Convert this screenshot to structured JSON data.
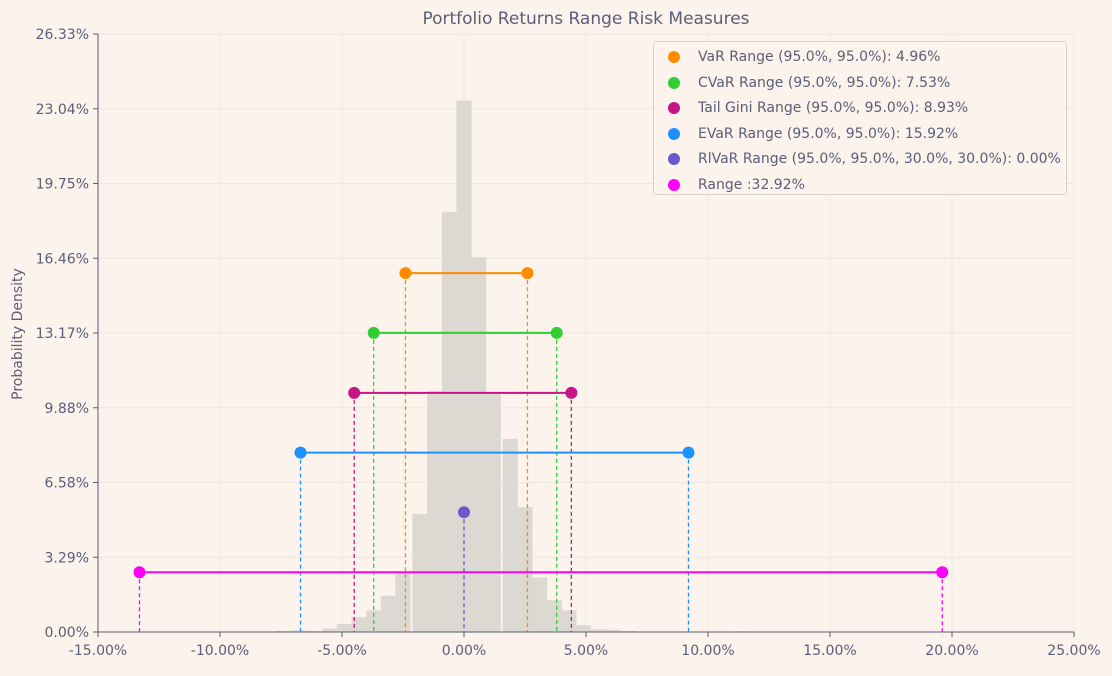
{
  "chart_data": {
    "type": "bar",
    "title": "Portfolio Returns Range Risk Measures",
    "xlabel": "",
    "ylabel": "Probability Density",
    "xlim": [
      -15,
      25
    ],
    "ylim": [
      0,
      26.33
    ],
    "x_ticks": [
      "-15.00%",
      "-10.00%",
      "-5.00%",
      "0.00%",
      "5.00%",
      "10.00%",
      "15.00%",
      "20.00%",
      "25.00%"
    ],
    "y_ticks": [
      "0.00%",
      "3.29%",
      "6.58%",
      "9.88%",
      "13.17%",
      "16.46%",
      "19.75%",
      "23.04%",
      "26.33%"
    ],
    "grid": true,
    "legend_placement": "top-right",
    "histogram": {
      "color": "#dcd9d3",
      "bin_width": 0.62,
      "bins": [
        {
          "x": -7.4,
          "y": 0.05
        },
        {
          "x": -6.8,
          "y": 0.08
        },
        {
          "x": -6.2,
          "y": 0.05
        },
        {
          "x": -5.5,
          "y": 0.15
        },
        {
          "x": -4.9,
          "y": 0.35
        },
        {
          "x": -4.3,
          "y": 0.65
        },
        {
          "x": -3.7,
          "y": 0.95
        },
        {
          "x": -3.1,
          "y": 1.6
        },
        {
          "x": -2.5,
          "y": 2.6
        },
        {
          "x": -1.8,
          "y": 5.2
        },
        {
          "x": -1.2,
          "y": 10.6
        },
        {
          "x": -0.6,
          "y": 18.5
        },
        {
          "x": 0.0,
          "y": 23.4
        },
        {
          "x": 0.6,
          "y": 16.5
        },
        {
          "x": 1.2,
          "y": 10.5
        },
        {
          "x": 1.9,
          "y": 8.5
        },
        {
          "x": 2.5,
          "y": 5.5
        },
        {
          "x": 3.1,
          "y": 2.4
        },
        {
          "x": 3.7,
          "y": 1.4
        },
        {
          "x": 4.3,
          "y": 0.95
        },
        {
          "x": 4.9,
          "y": 0.3
        },
        {
          "x": 5.5,
          "y": 0.12
        },
        {
          "x": 6.1,
          "y": 0.1
        },
        {
          "x": 6.7,
          "y": 0.05
        },
        {
          "x": 11.4,
          "y": 0.03
        }
      ]
    },
    "series": [
      {
        "name": "VaR Range (95.0%, 95.0%): 4.96%",
        "color": "#ff8c00",
        "low": -2.4,
        "high": 2.6,
        "level": 15.8
      },
      {
        "name": "CVaR Range (95.0%, 95.0%): 7.53%",
        "color": "#32cd32",
        "low": -3.7,
        "high": 3.8,
        "level": 13.17
      },
      {
        "name": "Tail Gini Range (95.0%, 95.0%): 8.93%",
        "color": "#c71585",
        "low": -4.5,
        "high": 4.4,
        "level": 10.53
      },
      {
        "name": "EVaR Range (95.0%, 95.0%): 15.92%",
        "color": "#1e90ff",
        "low": -6.7,
        "high": 9.2,
        "level": 7.9
      },
      {
        "name": "RlVaR Range (95.0%, 95.0%, 30.0%, 30.0%): 0.00%",
        "color": "#6a5acd",
        "low": 0.0,
        "high": 0.0,
        "level": 5.27
      },
      {
        "name": "Range :32.92%",
        "color": "#ff00ff",
        "low": -13.3,
        "high": 19.6,
        "level": 2.63
      }
    ]
  }
}
